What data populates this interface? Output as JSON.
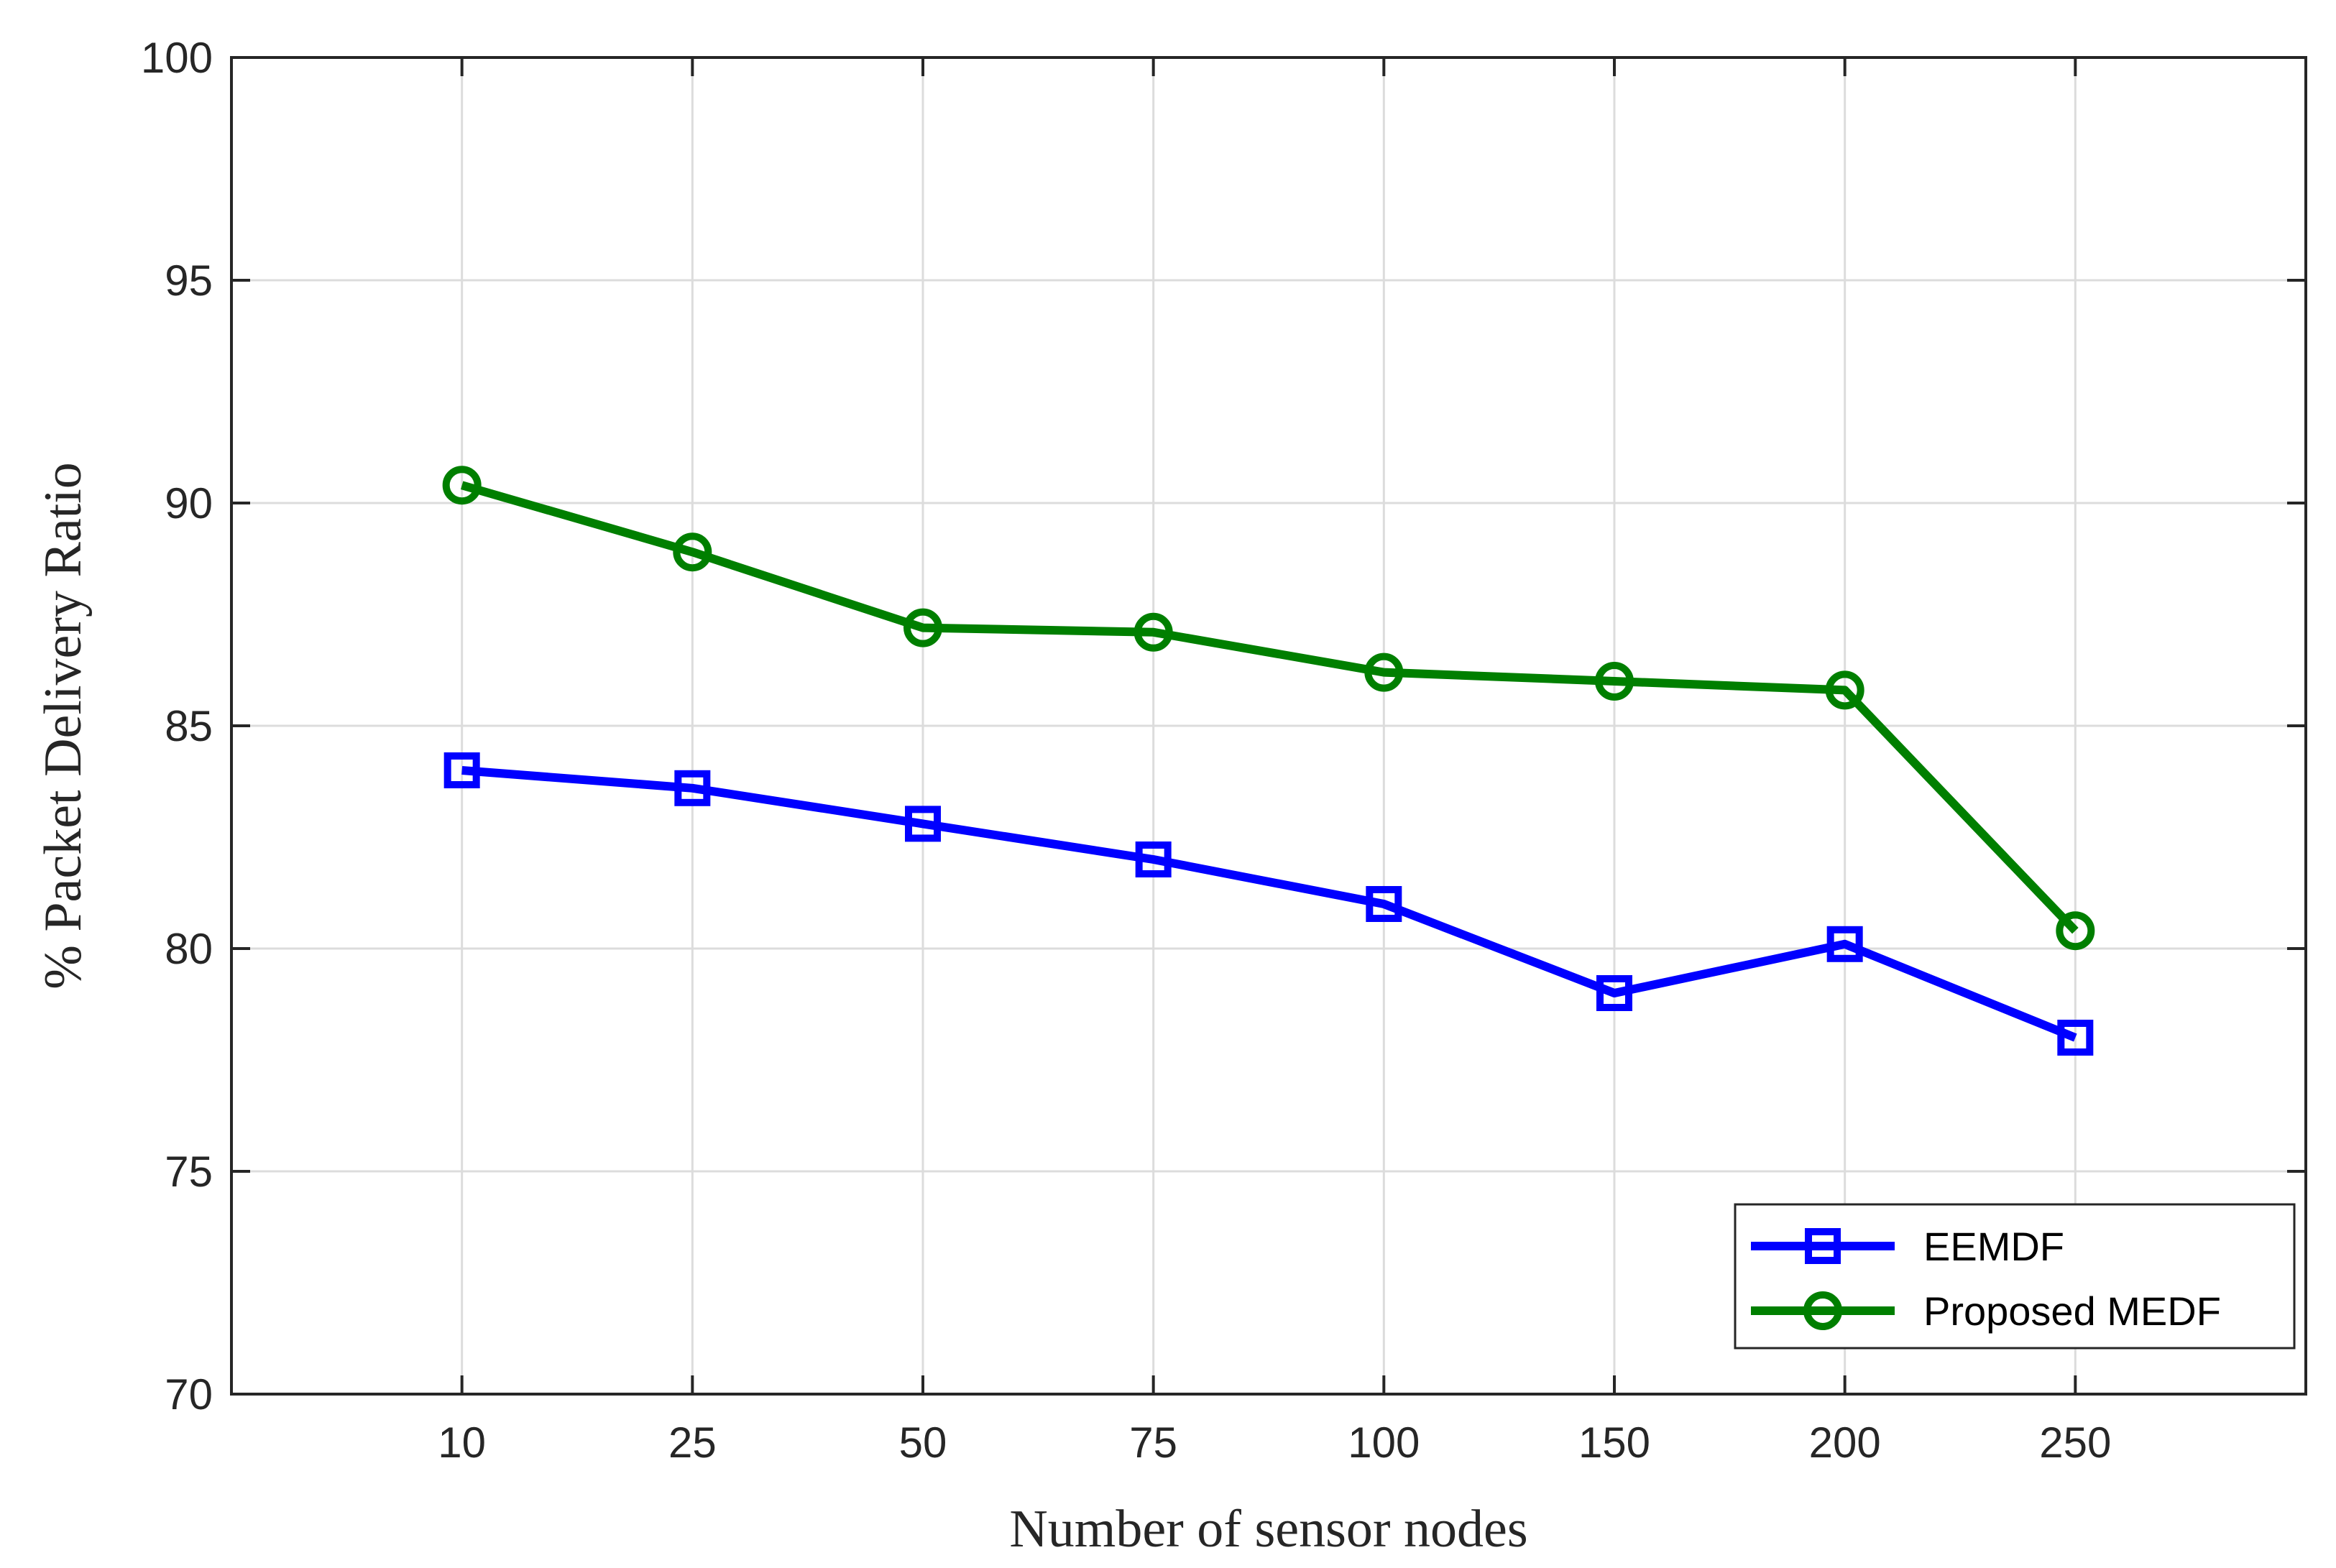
{
  "chart_data": {
    "type": "line",
    "title": "",
    "xlabel": "Number of sensor nodes",
    "ylabel": "% Packet Delivery Ratio",
    "categories": [
      "10",
      "25",
      "50",
      "75",
      "100",
      "150",
      "200",
      "250"
    ],
    "ylim": [
      70,
      100
    ],
    "yticks": [
      "70",
      "75",
      "80",
      "85",
      "90",
      "95",
      "100"
    ],
    "grid": true,
    "legend_position": "bottom-right",
    "series": [
      {
        "name": "EEMDF",
        "values": [
          84.0,
          83.6,
          82.8,
          82.0,
          81.0,
          79.0,
          80.1,
          78.0
        ],
        "color": "#0000ff",
        "marker": "square"
      },
      {
        "name": "Proposed MEDF",
        "values": [
          90.4,
          88.9,
          87.2,
          87.1,
          86.2,
          86.0,
          85.8,
          80.4
        ],
        "color": "#007f00",
        "marker": "circle"
      }
    ]
  }
}
